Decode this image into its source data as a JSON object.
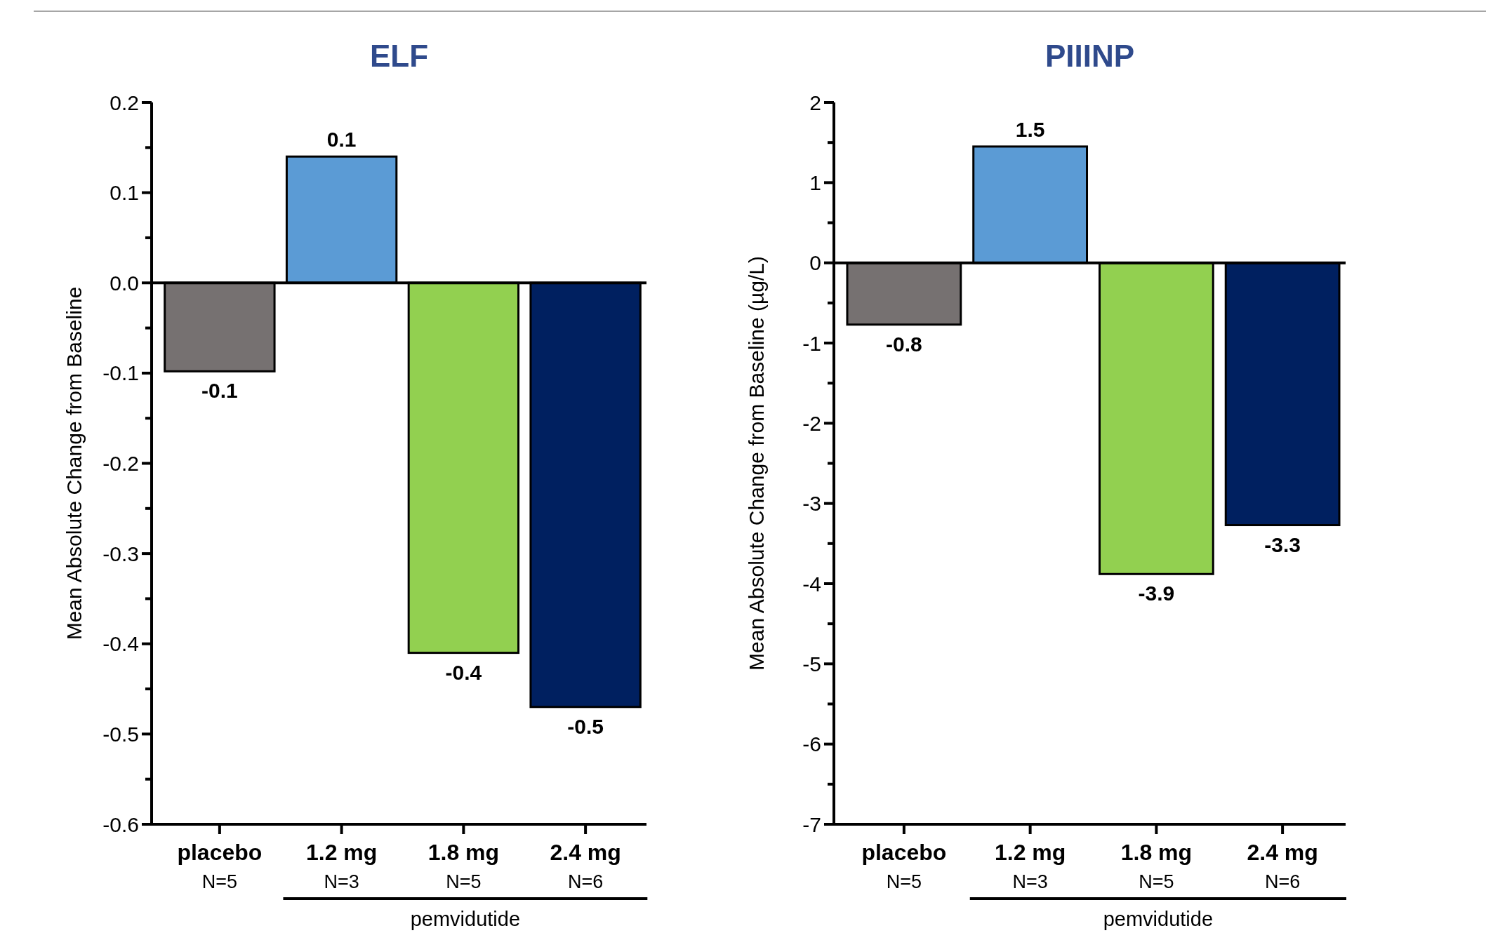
{
  "chart_data": [
    {
      "type": "bar",
      "title": "ELF",
      "ylabel": "Mean Absolute Change from Baseline",
      "categories": [
        "placebo\nN=5",
        "1.2 mg\nN=3",
        "1.8 mg\nN=5",
        "2.4 mg\nN=6"
      ],
      "values": [
        -0.098,
        0.14,
        -0.41,
        -0.47
      ],
      "colors": [
        "#767171",
        "#5b9bd5",
        "#92d050",
        "#002060"
      ],
      "value_labels": [
        "-0.1",
        "0.1",
        "-0.4",
        "-0.5"
      ],
      "ylim": [
        -0.6,
        0.2
      ],
      "yticks": [
        {
          "value": -0.6,
          "label": "-0.6"
        },
        {
          "value": -0.55,
          "label": null
        },
        {
          "value": -0.5,
          "label": "-0.5"
        },
        {
          "value": -0.45,
          "label": null
        },
        {
          "value": -0.4,
          "label": "-0.4"
        },
        {
          "value": -0.35,
          "label": null
        },
        {
          "value": -0.3,
          "label": "-0.3"
        },
        {
          "value": -0.25,
          "label": null
        },
        {
          "value": -0.2,
          "label": "-0.2"
        },
        {
          "value": -0.15,
          "label": null
        },
        {
          "value": -0.1,
          "label": "-0.1"
        },
        {
          "value": -0.05,
          "label": null
        },
        {
          "value": 0,
          "label": "0.0"
        },
        {
          "value": 0.05,
          "label": null
        },
        {
          "value": 0.1,
          "label": "0.1"
        },
        {
          "value": 0.15,
          "label": null
        },
        {
          "value": 0.2,
          "label": "0.2"
        }
      ],
      "annotations": [
        "pemvidutide"
      ]
    },
    {
      "type": "bar",
      "title": "PIIINP",
      "ylabel": "Mean Absolute Change from Baseline (µg/L)",
      "categories": [
        "placebo\nN=5",
        "1.2 mg\nN=3",
        "1.8 mg\nN=5",
        "2.4 mg\nN=6"
      ],
      "values": [
        -0.77,
        1.45,
        -3.88,
        -3.27
      ],
      "colors": [
        "#767171",
        "#5b9bd5",
        "#92d050",
        "#002060"
      ],
      "value_labels": [
        "-0.8",
        "1.5",
        "-3.9",
        "-3.3"
      ],
      "ylim": [
        -7,
        2
      ],
      "yticks": [
        -7,
        {
          "value": -6.5,
          "label": null
        },
        -6,
        {
          "value": -5.5,
          "label": null
        },
        -5,
        {
          "value": -4.5,
          "label": null
        },
        -4,
        {
          "value": -3.5,
          "label": null
        },
        -3,
        {
          "value": -2.5,
          "label": null
        },
        -2,
        {
          "value": -1.5,
          "label": null
        },
        -1,
        {
          "value": -0.5,
          "label": null
        },
        0,
        {
          "value": 0.5,
          "label": null
        },
        1,
        {
          "value": 1.5,
          "label": null
        },
        2
      ],
      "annotations": [
        "pemvidutide"
      ]
    }
  ]
}
